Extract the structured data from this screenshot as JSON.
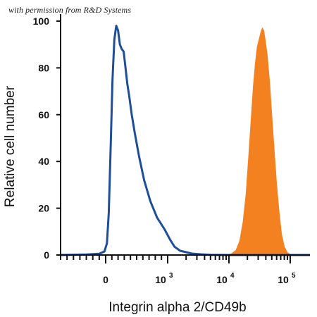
{
  "watermark": "with permission from R&D Systems",
  "colors": {
    "control_line": "#1f4e99",
    "stained_fill": "#f48120",
    "axis": "#111111"
  },
  "chart_data": {
    "type": "area",
    "xlabel": "Integrin alpha 2/CD49b",
    "ylabel": "Relative cell number",
    "x_scale": "biexponential",
    "xlim": [
      -700,
      150000
    ],
    "ylim": [
      0,
      103
    ],
    "grid": false,
    "y_ticks": [
      0,
      20,
      40,
      60,
      80,
      100
    ],
    "x_ticks": [
      {
        "value": 0,
        "label": "0",
        "exponent": ""
      },
      {
        "value": 1000,
        "label": "10",
        "exponent": "3"
      },
      {
        "value": 10000,
        "label": "10",
        "exponent": "4"
      },
      {
        "value": 100000,
        "label": "10",
        "exponent": "5"
      }
    ],
    "series": [
      {
        "style": "line",
        "color": "#1f4e99",
        "points": [
          [
            -700,
            0
          ],
          [
            -300,
            0.2
          ],
          [
            -100,
            0.5
          ],
          [
            -20,
            1.5
          ],
          [
            20,
            5
          ],
          [
            50,
            18
          ],
          [
            80,
            45
          ],
          [
            110,
            75
          ],
          [
            140,
            92
          ],
          [
            170,
            98
          ],
          [
            200,
            96
          ],
          [
            230,
            90
          ],
          [
            260,
            88
          ],
          [
            290,
            87
          ],
          [
            320,
            80
          ],
          [
            350,
            73
          ],
          [
            380,
            68
          ],
          [
            420,
            60
          ],
          [
            470,
            52
          ],
          [
            540,
            42
          ],
          [
            620,
            32
          ],
          [
            720,
            23
          ],
          [
            830,
            16
          ],
          [
            950,
            11
          ],
          [
            1100,
            6.5
          ],
          [
            1300,
            3.5
          ],
          [
            1600,
            1.8
          ],
          [
            2000,
            1.2
          ],
          [
            2500,
            0.6
          ],
          [
            3500,
            0.3
          ],
          [
            5000,
            0.1
          ],
          [
            10000,
            0
          ],
          [
            150000,
            0
          ]
        ]
      },
      {
        "style": "filled",
        "color": "#f48120",
        "points": [
          [
            -700,
            0
          ],
          [
            5000,
            0
          ],
          [
            9000,
            0
          ],
          [
            11000,
            0.5
          ],
          [
            13000,
            2
          ],
          [
            15000,
            6
          ],
          [
            17000,
            14
          ],
          [
            19000,
            26
          ],
          [
            21000,
            42
          ],
          [
            23000,
            58
          ],
          [
            25000,
            72
          ],
          [
            27000,
            82
          ],
          [
            29000,
            89
          ],
          [
            31000,
            92
          ],
          [
            33000,
            95
          ],
          [
            35000,
            97
          ],
          [
            37000,
            96
          ],
          [
            39000,
            92
          ],
          [
            42000,
            86
          ],
          [
            46000,
            74
          ],
          [
            50000,
            60
          ],
          [
            55000,
            44
          ],
          [
            60000,
            30
          ],
          [
            66000,
            18
          ],
          [
            72000,
            9
          ],
          [
            80000,
            3.5
          ],
          [
            90000,
            1
          ],
          [
            100000,
            0.3
          ],
          [
            150000,
            0
          ]
        ]
      }
    ]
  }
}
